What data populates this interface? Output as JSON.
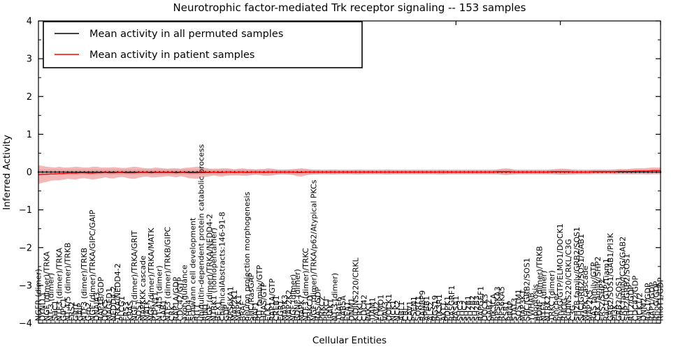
{
  "title": "Neurotrophic factor-mediated Trk receptor signaling -- 153 samples",
  "chart_data": {
    "type": "line",
    "title": "Neurotrophic factor-mediated Trk receptor signaling -- 153 samples",
    "xlabel": "Cellular Entities",
    "ylabel": "Inferred Activity",
    "ylim": [
      -4,
      4
    ],
    "yticks": [
      -4,
      -3,
      -2,
      -1,
      0,
      1,
      2,
      3,
      4
    ],
    "grid": false,
    "legend_position": "upper left",
    "legend": [
      {
        "label": "Mean activity in all permuted samples",
        "color": "#000000"
      },
      {
        "label": "Mean activity in patient samples",
        "color": "#ff0000"
      }
    ],
    "colors": {
      "patient_line": "#ff0000",
      "patient_band": "#e87070",
      "permuted_line": "#000000",
      "permuted_band": "#c8c8c8",
      "axis": "#000000",
      "background": "#ffffff"
    },
    "entities": [
      "NGFR (dimer)",
      "DYNLL1",
      "NGF (dimer)/TRKA",
      "NT-3 (dimer)",
      "SHC1",
      "NTF3 (dimer)/TRKA",
      "GIPC1",
      "NT-4/5 (dimer)/TRKB",
      "FRS2",
      "GRIT",
      "GAIP",
      "NTF3 (dimer)/TRKB",
      "Grb2",
      "NGF (dimer)/TRKA/GIPC/GAIP",
      "DNAJA3",
      "RAP1B/GDP",
      "DOK5",
      "MAGED1",
      "NEDD4-2",
      "TRKA/NEDD4-2",
      "PLCG1",
      "FRS3",
      "KRAS",
      "NGF (dimer)/TRKA/GRIT",
      "SOS1",
      "MAPKKK cascade",
      "MATK",
      "NGF (dimer)/TRKA/MATK",
      "PTPN11",
      "NT-4/5 (dimer)",
      "GAB1",
      "NTF3 (dimer)/TRKB/GIPC",
      "CRK",
      "RAP1A/GDP",
      "CDC42/GTP",
      "axon guidance",
      "EHD4",
      "Schwann cell development",
      "RIT1",
      "ubiquitin-dependent protein catabolic process",
      "RIN1",
      "NGF (dimer)/TRKA/NEDD4-2",
      "NTRK1 (homopentamer)",
      "BEX1",
      "ChemicalAbstracts:146-91-8",
      "GDP",
      "RPS6KA1",
      "MAP2K1",
      "MAPK1",
      "BRAF",
      "neuron projection morphogenesis",
      "SHC/RasGAP",
      "RAF1",
      "RIT family/GTP",
      "HRAS/GTP",
      "ELK1",
      "RAP1A/GTP",
      "CREB1",
      "EGR1",
      "MAPK3",
      "MAP2K2",
      "NGF (dimer)",
      "BDNF (dimer)",
      "MAPK7",
      "NTF3 (dimer)/TRKC",
      "PRKCD",
      "NGF (dimer)/TRKA/p62/Atypical PKCs",
      "RAS/GDP",
      "PRKCZ",
      "PRKCI",
      "IRAK1",
      "NT-3 (dimer)",
      "TRAF6",
      "RAB5A",
      "EEA1",
      "DNM1",
      "KIDINS220/CRKL",
      "CRKL",
      "CDC42",
      "PAK1",
      "TIAM1",
      "VAV2",
      "ELMO1",
      "VAV3",
      "DOCK1",
      "NCK1",
      "NCK2",
      "ABL1",
      "CBL",
      "CAV1",
      "PSEN1",
      "SORT1",
      "RANBP9",
      "APBB1",
      "ALS2",
      "RGS19",
      "PIK3R1",
      "AKT1",
      "PDPK1",
      "RASGRF1",
      "RASA1",
      "SHC3",
      "SHC2",
      "SH2B1",
      "SH2B2",
      "SH2B3",
      "RAPGEF1",
      "DOCK3",
      "GAB2",
      "PIK3CA",
      "RPS6KA3",
      "RPS6KA5",
      "KSR1",
      "BRAP",
      "STAT3",
      "SQSTM1",
      "MAP3K1",
      "SHC/GRB2/SOS1",
      "YWHAB",
      "apoptosis",
      "BDNF (dimer)/TRKB",
      "NTF4 (dimer)",
      "NTRK2",
      "TRKC (dimer)",
      "Pincher",
      "RhoG/GTP/ELMO1/DOCK1",
      "RHOG",
      "KIDINS220/CRKL/C3G",
      "C3G",
      "SH2B family/GRB2/SOS1",
      "SHC/GRB2/SOS1/GAB1",
      "MAPK cascade",
      "MAP2K5",
      "RAS family/GTP",
      "CRK family/SHP2",
      "FRS2/SHP2",
      "Rac1/GTP/Tiam1",
      "GRB2/SOS1/GAB1/PI3K",
      "PI3K",
      "GRB2/SOS1",
      "CRK family/C3G/GAB2",
      "SHP2/GRB2/SOS1",
      "RIT2/GDP",
      "CDC42/GDP",
      "NCK1/2",
      "DNM2",
      "Rac1/GDP",
      "RAP1/GDP",
      "RhoG/GDP",
      "RhoT1/GDP"
    ],
    "series": [
      {
        "name": "Mean activity in all permuted samples",
        "color": "#000000",
        "mean_constant": 0.0,
        "band_halfwidth_constant": 0.065
      },
      {
        "name": "Mean activity in patient samples",
        "color": "#ff0000",
        "mean": [
          -0.07,
          -0.06,
          -0.06,
          -0.05,
          -0.05,
          -0.04,
          -0.04,
          -0.03,
          -0.03,
          -0.03,
          -0.02,
          -0.02,
          -0.03,
          -0.03,
          -0.02,
          -0.02,
          -0.01,
          -0.02,
          -0.02,
          -0.01,
          -0.01,
          -0.02,
          -0.02,
          -0.02,
          -0.01,
          -0.01,
          -0.01,
          -0.02,
          -0.01,
          -0.01,
          -0.01,
          -0.01,
          -0.01,
          -0.02,
          -0.01,
          -0.01,
          -0.02,
          -0.02,
          -0.02,
          -0.01,
          -0.01,
          -0.01,
          0.0,
          -0.01,
          -0.01,
          0.0,
          0.0,
          -0.01,
          0.0,
          0.0,
          -0.01,
          0.0,
          0.0,
          0.0,
          -0.01,
          0.0,
          0.0,
          0.0,
          0.0,
          0.0,
          0.0,
          0.0,
          -0.01,
          -0.01,
          0.0,
          0.0,
          0.0,
          0.0,
          0.0,
          0.0,
          0.0,
          0.0,
          0.0,
          0.0,
          0.0,
          0.0,
          0.0,
          0.0,
          0.0,
          0.0,
          0.0,
          0.0,
          0.0,
          0.0,
          0.0,
          0.0,
          0.0,
          0.0,
          0.0,
          0.0,
          0.0,
          0.0,
          0.0,
          0.0,
          0.0,
          0.0,
          0.0,
          0.0,
          0.0,
          0.0,
          0.0,
          0.0,
          0.0,
          0.0,
          0.0,
          0.0,
          0.0,
          0.0,
          0.0,
          0.0,
          0.01,
          0.01,
          0.01,
          0.01,
          0.0,
          0.0,
          0.0,
          0.0,
          0.0,
          0.0,
          0.0,
          0.0,
          0.0,
          0.01,
          0.01,
          0.01,
          0.01,
          0.01,
          0.0,
          0.0,
          0.0,
          0.0,
          0.0,
          0.01,
          0.01,
          0.01,
          0.01,
          0.01,
          0.01,
          0.02,
          0.02,
          0.02,
          0.02,
          0.03,
          0.03,
          0.03,
          0.03,
          0.04,
          0.04,
          0.04
        ],
        "band_halfwidth": [
          0.25,
          0.22,
          0.2,
          0.18,
          0.17,
          0.18,
          0.16,
          0.15,
          0.16,
          0.17,
          0.15,
          0.14,
          0.15,
          0.17,
          0.16,
          0.14,
          0.13,
          0.14,
          0.15,
          0.13,
          0.12,
          0.13,
          0.15,
          0.16,
          0.14,
          0.12,
          0.11,
          0.12,
          0.13,
          0.12,
          0.11,
          0.1,
          0.11,
          0.12,
          0.1,
          0.12,
          0.14,
          0.15,
          0.16,
          0.14,
          0.12,
          0.1,
          0.09,
          0.1,
          0.11,
          0.1,
          0.09,
          0.08,
          0.09,
          0.1,
          0.09,
          0.08,
          0.07,
          0.08,
          0.09,
          0.1,
          0.09,
          0.07,
          0.06,
          0.06,
          0.07,
          0.08,
          0.1,
          0.11,
          0.09,
          0.07,
          0.06,
          0.06,
          0.05,
          0.05,
          0.06,
          0.06,
          0.05,
          0.05,
          0.05,
          0.05,
          0.06,
          0.06,
          0.05,
          0.05,
          0.05,
          0.05,
          0.05,
          0.06,
          0.06,
          0.05,
          0.05,
          0.05,
          0.05,
          0.05,
          0.05,
          0.05,
          0.05,
          0.05,
          0.05,
          0.05,
          0.06,
          0.06,
          0.05,
          0.05,
          0.05,
          0.05,
          0.05,
          0.05,
          0.05,
          0.05,
          0.05,
          0.05,
          0.05,
          0.05,
          0.06,
          0.08,
          0.09,
          0.08,
          0.06,
          0.05,
          0.05,
          0.05,
          0.05,
          0.05,
          0.05,
          0.05,
          0.05,
          0.06,
          0.07,
          0.08,
          0.08,
          0.07,
          0.06,
          0.05,
          0.05,
          0.05,
          0.05,
          0.05,
          0.05,
          0.05,
          0.05,
          0.05,
          0.06,
          0.06,
          0.06,
          0.06,
          0.07,
          0.07,
          0.07,
          0.07,
          0.08,
          0.08,
          0.08,
          0.08
        ]
      }
    ]
  }
}
